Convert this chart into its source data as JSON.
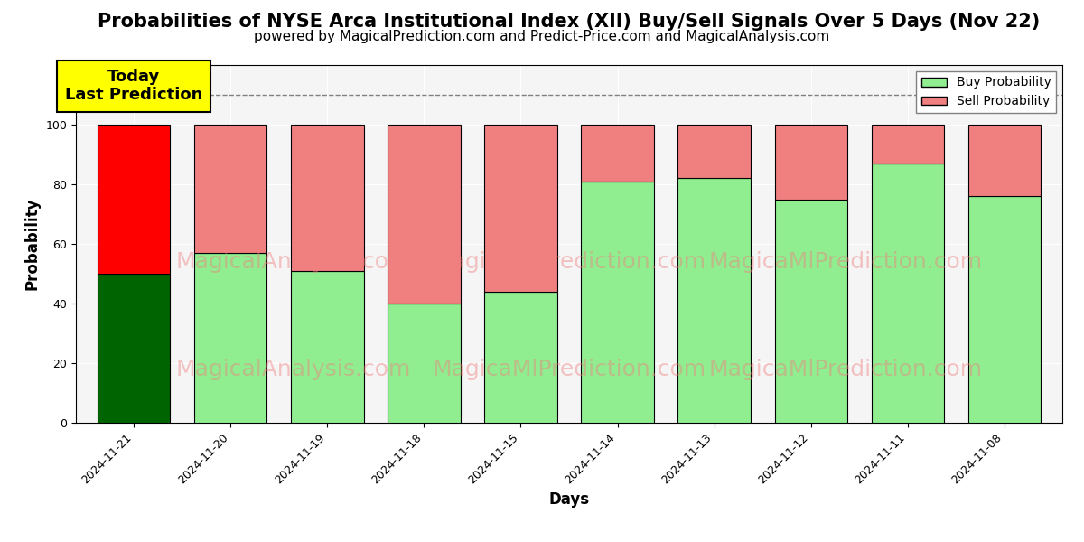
{
  "title": "Probabilities of NYSE Arca Institutional Index (XII) Buy/Sell Signals Over 5 Days (Nov 22)",
  "subtitle": "powered by MagicalPrediction.com and Predict-Price.com and MagicalAnalysis.com",
  "xlabel": "Days",
  "ylabel": "Probability",
  "dates": [
    "2024-11-21",
    "2024-11-20",
    "2024-11-19",
    "2024-11-18",
    "2024-11-15",
    "2024-11-14",
    "2024-11-13",
    "2024-11-12",
    "2024-11-11",
    "2024-11-08"
  ],
  "buy_values": [
    50,
    57,
    51,
    40,
    44,
    81,
    82,
    75,
    87,
    76
  ],
  "sell_values": [
    50,
    43,
    49,
    60,
    56,
    19,
    18,
    25,
    13,
    24
  ],
  "buy_color_default": "#90EE90",
  "sell_color_default": "#F08080",
  "buy_color_today": "#006400",
  "sell_color_today": "#ff0000",
  "ylim": [
    0,
    120
  ],
  "yticks": [
    0,
    20,
    40,
    60,
    80,
    100
  ],
  "dashed_line_y": 110,
  "watermark_color": "#F08080",
  "annotation_text": "Today\nLast Prediction",
  "annotation_bg": "#ffff00",
  "legend_buy_label": "Buy Probability",
  "legend_sell_label": "Sell Probability",
  "bar_width": 0.75,
  "title_fontsize": 15,
  "subtitle_fontsize": 11,
  "axis_label_fontsize": 12,
  "tick_fontsize": 9,
  "bg_color": "#f5f5f5"
}
